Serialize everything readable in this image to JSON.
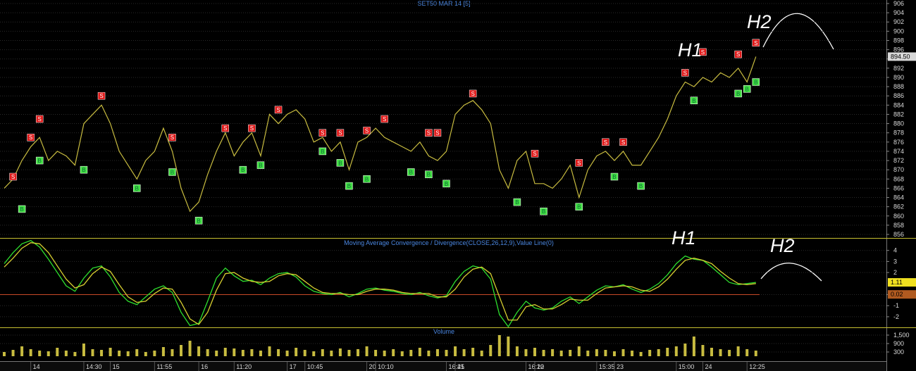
{
  "chart_data": [
    {
      "type": "line",
      "title": "SET50 MAR 14  [5]",
      "color": "#c8bc40",
      "values": [
        866,
        868,
        872,
        875,
        877,
        872,
        874,
        873,
        871,
        880,
        882,
        884,
        880,
        874,
        871,
        868,
        872,
        874,
        879,
        874,
        866,
        861,
        863,
        869,
        874,
        878,
        873,
        876,
        878,
        873,
        882,
        880,
        882,
        883,
        881,
        876,
        877,
        874,
        876,
        870,
        876,
        877,
        879,
        877,
        876,
        875,
        874,
        876,
        873,
        872,
        874,
        882,
        884,
        885,
        883,
        880,
        870,
        866,
        872,
        874,
        867,
        867,
        866,
        868,
        871,
        864,
        870,
        873,
        874,
        872,
        874,
        871,
        871,
        874,
        877,
        881,
        886,
        889,
        888,
        890,
        889,
        891,
        890,
        892,
        889,
        894.5
      ],
      "sell_signals": {
        "label": "S",
        "color": "#e01818",
        "values": [
          null,
          868.5,
          null,
          877,
          881,
          null,
          null,
          null,
          null,
          null,
          null,
          886,
          null,
          null,
          null,
          null,
          null,
          null,
          null,
          877,
          null,
          null,
          null,
          null,
          null,
          879,
          null,
          null,
          879,
          null,
          null,
          883,
          null,
          null,
          null,
          null,
          878,
          null,
          878,
          null,
          null,
          878.5,
          null,
          881,
          null,
          null,
          null,
          null,
          878,
          878,
          null,
          null,
          null,
          886.5,
          null,
          null,
          null,
          null,
          null,
          null,
          873.5,
          null,
          null,
          null,
          null,
          871.5,
          null,
          null,
          876,
          null,
          876,
          null,
          null,
          null,
          null,
          null,
          null,
          891,
          null,
          895.5,
          null,
          null,
          null,
          895,
          null,
          897.5
        ]
      },
      "buy_signals": {
        "label": "B",
        "color": "#44e044",
        "values": [
          null,
          null,
          861.5,
          null,
          872,
          null,
          null,
          null,
          null,
          870,
          null,
          null,
          null,
          null,
          null,
          866,
          null,
          null,
          null,
          869.5,
          null,
          null,
          859,
          null,
          null,
          null,
          null,
          870,
          null,
          871,
          null,
          null,
          null,
          null,
          null,
          null,
          874,
          null,
          871.5,
          866.5,
          null,
          868,
          null,
          null,
          null,
          null,
          869.5,
          null,
          869,
          null,
          867,
          null,
          null,
          null,
          null,
          null,
          null,
          null,
          863,
          null,
          null,
          861,
          null,
          null,
          null,
          862,
          null,
          null,
          null,
          868.5,
          null,
          null,
          866.5,
          null,
          null,
          null,
          null,
          null,
          885,
          null,
          null,
          null,
          null,
          886.5,
          887.5,
          889
        ]
      },
      "last_value": {
        "value": 894.5,
        "label": "894.50"
      },
      "annotations": [
        "H1",
        "H2"
      ],
      "ylim": [
        855.24,
        906.76
      ],
      "yticks": [
        856,
        858,
        860,
        862,
        864,
        866,
        868,
        870,
        872,
        874,
        876,
        878,
        880,
        882,
        884,
        886,
        888,
        890,
        892,
        894,
        896,
        898,
        900,
        902,
        904,
        906
      ],
      "grid": true
    },
    {
      "type": "line",
      "title": "Moving Average Convergence / Divergence(CLOSE,26,12,9),Value Line(0)",
      "series": [
        {
          "color": "#2ee02e",
          "values": [
            2.8,
            3.8,
            4.6,
            4.9,
            4.3,
            3.2,
            2.0,
            0.8,
            0.3,
            1.5,
            2.4,
            2.6,
            1.6,
            0.2,
            -0.6,
            -0.9,
            -0.2,
            0.5,
            0.8,
            0.2,
            -1.6,
            -2.8,
            -2.6,
            -0.6,
            1.5,
            2.4,
            1.7,
            1.2,
            1.3,
            0.9,
            1.5,
            1.9,
            2.0,
            1.6,
            0.8,
            0.3,
            0.1,
            0.0,
            0.2,
            -0.2,
            0.1,
            0.5,
            0.6,
            0.4,
            0.3,
            0.1,
            0.0,
            0.2,
            -0.1,
            -0.3,
            -0.1,
            1.2,
            2.1,
            2.6,
            2.4,
            1.4,
            -1.8,
            -2.9,
            -1.6,
            -0.6,
            -1.2,
            -1.4,
            -1.2,
            -0.6,
            -0.2,
            -0.8,
            -0.2,
            0.4,
            0.8,
            0.7,
            0.9,
            0.5,
            0.2,
            0.5,
            1.0,
            1.8,
            2.8,
            3.5,
            3.2,
            3.1,
            2.5,
            1.8,
            1.1,
            0.9,
            1.0,
            1.11
          ]
        },
        {
          "color": "#d8d030",
          "values": [
            2.5,
            3.3,
            4.2,
            4.7,
            4.6,
            3.8,
            2.6,
            1.4,
            0.6,
            0.9,
            1.9,
            2.5,
            2.1,
            0.9,
            -0.2,
            -0.7,
            -0.6,
            0.1,
            0.6,
            0.5,
            -0.7,
            -2.2,
            -2.7,
            -1.6,
            0.4,
            1.9,
            2.0,
            1.5,
            1.2,
            1.1,
            1.2,
            1.7,
            1.9,
            1.8,
            1.2,
            0.6,
            0.2,
            0.1,
            0.1,
            0.0,
            0.0,
            0.3,
            0.5,
            0.5,
            0.4,
            0.2,
            0.1,
            0.1,
            0.1,
            -0.2,
            -0.2,
            0.5,
            1.6,
            2.3,
            2.5,
            1.9,
            -0.2,
            -2.3,
            -2.3,
            -1.1,
            -0.9,
            -1.3,
            -1.3,
            -0.9,
            -0.4,
            -0.5,
            -0.5,
            0.1,
            0.6,
            0.7,
            0.8,
            0.7,
            0.4,
            0.3,
            0.7,
            1.4,
            2.3,
            3.1,
            3.3,
            3.1,
            2.8,
            2.1,
            1.5,
            1.0,
            0.9,
            1.0
          ]
        }
      ],
      "value_line": 0,
      "last_values": [
        {
          "value": 1.11,
          "label": "1.11",
          "color": "#f0e020"
        },
        {
          "value": 0.02,
          "label": "0.02",
          "color": "#b05a20"
        }
      ],
      "annotations": [
        "H1",
        "H2"
      ],
      "ylim": [
        -2.96,
        5
      ],
      "yticks": [
        4,
        3,
        2,
        0,
        -1,
        -2
      ],
      "grid": true
    },
    {
      "type": "bar",
      "title": "Volume",
      "color": "#c8bc40",
      "categories": [
        null,
        null,
        null,
        "14",
        null,
        null,
        null,
        null,
        null,
        "14:30",
        null,
        null,
        "15",
        null,
        null,
        null,
        null,
        "11:55",
        null,
        null,
        null,
        null,
        "16",
        null,
        null,
        null,
        "11:20",
        null,
        null,
        null,
        null,
        null,
        "17",
        null,
        "10:45",
        null,
        null,
        null,
        null,
        null,
        null,
        "20",
        "10:10",
        null,
        null,
        null,
        null,
        null,
        null,
        null,
        "16:45",
        "21",
        null,
        null,
        null,
        null,
        null,
        null,
        null,
        "16:10",
        "22",
        null,
        null,
        null,
        null,
        null,
        null,
        "15:35",
        null,
        "23",
        null,
        null,
        null,
        null,
        null,
        null,
        "15:00",
        null,
        null,
        "24",
        null,
        null,
        null,
        null,
        "12:25",
        null
      ],
      "values": [
        300,
        450,
        700,
        500,
        400,
        350,
        600,
        400,
        300,
        900,
        500,
        450,
        600,
        400,
        350,
        500,
        300,
        400,
        650,
        500,
        800,
        1100,
        700,
        500,
        400,
        600,
        550,
        450,
        500,
        400,
        700,
        500,
        400,
        600,
        450,
        350,
        500,
        400,
        550,
        450,
        500,
        700,
        450,
        400,
        500,
        350,
        450,
        600,
        400,
        500,
        450,
        700,
        500,
        600,
        400,
        800,
        1500,
        1400,
        700,
        500,
        600,
        450,
        500,
        400,
        450,
        700,
        400,
        500,
        450,
        350,
        500,
        400,
        300,
        450,
        500,
        600,
        700,
        900,
        1400,
        800,
        600,
        500,
        450,
        700,
        500,
        400
      ],
      "ylim": [
        -300,
        2000
      ],
      "yticks": [
        {
          "value": 1500,
          "label": "1,500"
        },
        900,
        300
      ],
      "grid": true
    }
  ]
}
